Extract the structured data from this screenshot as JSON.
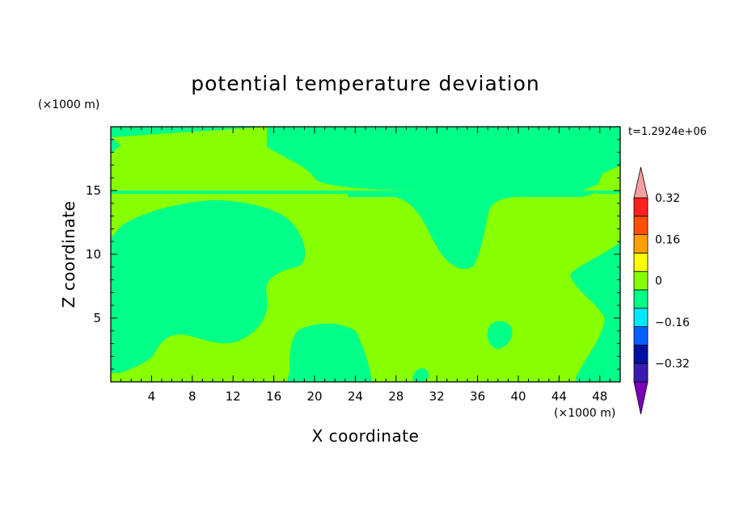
{
  "chart_data": {
    "type": "heatmap",
    "title": "potential temperature deviation",
    "xlabel": "X coordinate",
    "ylabel": "Z coordinate",
    "x_unit": "(×1000 m)",
    "y_unit": "(×1000 m)",
    "time_label": "t=1.2924e+06",
    "xlim": [
      0,
      50
    ],
    "ylim": [
      0,
      20
    ],
    "x_ticks": [
      4,
      8,
      12,
      16,
      20,
      24,
      28,
      32,
      36,
      40,
      44,
      48
    ],
    "y_ticks": [
      5,
      10,
      15
    ],
    "colorbar": {
      "labels": [
        "0.32",
        "0.16",
        "0",
        "-0.16",
        "-0.32"
      ],
      "label_values": [
        0.32,
        0.16,
        0,
        -0.16,
        -0.32
      ],
      "levels": [
        -0.32,
        -0.24,
        -0.16,
        -0.08,
        0,
        0.08,
        0.16,
        0.24,
        0.32
      ],
      "colors": [
        "#7a00b8",
        "#3a1cb0",
        "#0010a0",
        "#0060ff",
        "#00e8ff",
        "#00ff88",
        "#88ff00",
        "#ffff00",
        "#ffa000",
        "#ff5000",
        "#ff2020",
        "#f4a0a0"
      ]
    },
    "field_summary": "Field mostly in the 0 to 0.08 band (yellow-green) with regions in the -0.08 to 0 band (green) near the surface, in the upper layer above ~15 km, and a trough near x=32-36 km.",
    "colors": {
      "positive_small": "#88ff00",
      "negative_small": "#00ff88"
    }
  }
}
